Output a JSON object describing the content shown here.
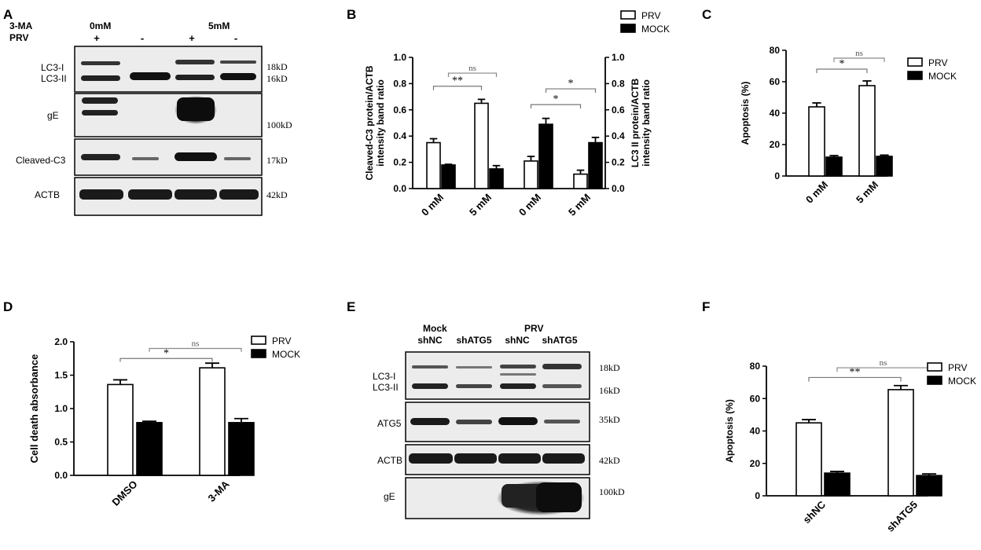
{
  "panels": {
    "A": {
      "letter": "A",
      "header": {
        "treatment_label": "3-MA",
        "dose1": "0mM",
        "dose2": "5mM",
        "prv_label": "PRV",
        "prv_signs": [
          "+",
          "-",
          "+",
          "-"
        ]
      },
      "blots": [
        {
          "names": [
            "LC3-I",
            "LC3-II"
          ],
          "sizes": [
            "18kD",
            "16kD"
          ]
        },
        {
          "names": [
            "gE"
          ],
          "sizes": [
            "100kD"
          ]
        },
        {
          "names": [
            "Cleaved-C3"
          ],
          "sizes": [
            "17kD"
          ]
        },
        {
          "names": [
            "ACTB"
          ],
          "sizes": [
            "42kD"
          ]
        }
      ]
    },
    "E": {
      "letter": "E",
      "header": {
        "group1": "Mock",
        "group2": "PRV",
        "lanes": [
          "shNC",
          "shATG5",
          "shNC",
          "shATG5"
        ]
      },
      "blots": [
        {
          "names": [
            "LC3-I",
            "LC3-II"
          ],
          "sizes": [
            "18kD",
            "16kD"
          ]
        },
        {
          "names": [
            "ATG5"
          ],
          "sizes": [
            "35kD"
          ]
        },
        {
          "names": [
            "ACTB"
          ],
          "sizes": [
            "42kD"
          ]
        },
        {
          "names": [
            "gE"
          ],
          "sizes": [
            "100kD"
          ]
        }
      ]
    }
  },
  "chart_data": [
    {
      "panel": "B",
      "type": "bar",
      "categories": [
        "0 mM",
        "5 mM",
        "0 mM",
        "5 mM"
      ],
      "series": [
        {
          "name": "PRV",
          "values": [
            0.35,
            0.65,
            0.21,
            0.11
          ],
          "errors": [
            0.03,
            0.03,
            0.035,
            0.03
          ]
        },
        {
          "name": "MOCK",
          "values": [
            0.18,
            0.15,
            0.49,
            0.35
          ],
          "errors": [
            0.005,
            0.025,
            0.045,
            0.04
          ]
        }
      ],
      "ylabel": "Cleaved-C3 protein/ACTB intensity band ratio",
      "ylabel2": "LC3 II  protein/ACTB intensity band ratio",
      "ylim": [
        0,
        1.0
      ],
      "yticks": [
        "0.0",
        "0.2",
        "0.4",
        "0.6",
        "0.8",
        "1.0"
      ],
      "significance": [
        "**",
        "ns",
        "*",
        "*"
      ],
      "legend": "top-right"
    },
    {
      "panel": "C",
      "type": "bar",
      "categories": [
        "0 mM",
        "5 mM"
      ],
      "series": [
        {
          "name": "PRV",
          "values": [
            44,
            57.5
          ],
          "errors": [
            2.5,
            3
          ]
        },
        {
          "name": "MOCK",
          "values": [
            12,
            12.5
          ],
          "errors": [
            1,
            0.8
          ]
        }
      ],
      "ylabel": "Apoptosis (%)",
      "ylim": [
        0,
        80
      ],
      "yticks": [
        "0",
        "20",
        "40",
        "60",
        "80"
      ],
      "significance": [
        "*",
        "ns"
      ],
      "legend": "top-right"
    },
    {
      "panel": "D",
      "type": "bar",
      "categories": [
        "DMSO",
        "3-MA"
      ],
      "series": [
        {
          "name": "PRV",
          "values": [
            1.36,
            1.61
          ],
          "errors": [
            0.07,
            0.07
          ]
        },
        {
          "name": "MOCK",
          "values": [
            0.79,
            0.79
          ],
          "errors": [
            0.02,
            0.06
          ]
        }
      ],
      "ylabel": "Cell death absorbance",
      "ylim": [
        0,
        2.0
      ],
      "yticks": [
        "0.0",
        "0.5",
        "1.0",
        "1.5",
        "2.0"
      ],
      "significance": [
        "*",
        "ns"
      ],
      "legend": "top-right"
    },
    {
      "panel": "F",
      "type": "bar",
      "categories": [
        "shNC",
        "shATG5"
      ],
      "series": [
        {
          "name": "PRV",
          "values": [
            45,
            65.5
          ],
          "errors": [
            2,
            2.5
          ]
        },
        {
          "name": "MOCK",
          "values": [
            14,
            12.5
          ],
          "errors": [
            1,
            1
          ]
        }
      ],
      "ylabel": "Apoptosis (%)",
      "ylim": [
        0,
        80
      ],
      "yticks": [
        "0",
        "20",
        "40",
        "60",
        "80"
      ],
      "significance": [
        "**",
        "ns"
      ],
      "legend": "top-right"
    }
  ]
}
